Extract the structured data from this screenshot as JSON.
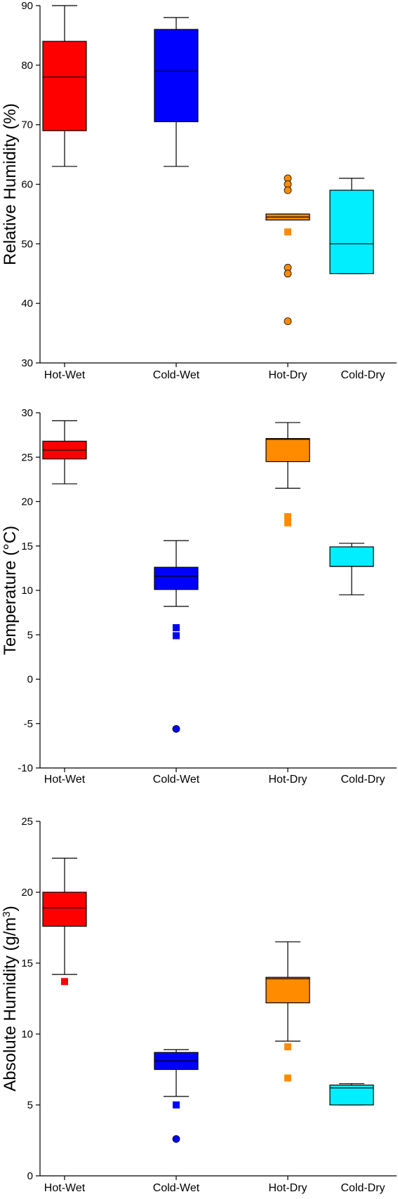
{
  "chart_data": [
    {
      "type": "box",
      "ylabel": "Relative Humidity (%)",
      "ylim": [
        30,
        90
      ],
      "yticks": [
        30,
        40,
        50,
        60,
        70,
        80,
        90
      ],
      "categories": [
        "Hot-Wet",
        "Cold-Wet",
        "Hot-Dry",
        "Cold-Dry"
      ],
      "colors": [
        "#ff0000",
        "#0000ff",
        "#ff8c00",
        "#00eeff"
      ],
      "boxes": [
        {
          "whisker_low": 63,
          "q1": 69,
          "median": 78,
          "q3": 84,
          "whisker_high": 90,
          "outliers": []
        },
        {
          "whisker_low": 63,
          "q1": 70.5,
          "median": 79,
          "q3": 86,
          "whisker_high": 88,
          "outliers": []
        },
        {
          "whisker_low": 54,
          "q1": 54,
          "median": 54.5,
          "q3": 55,
          "whisker_high": 55,
          "outliers": [
            {
              "value": 61,
              "shape": "circle"
            },
            {
              "value": 60,
              "shape": "circle"
            },
            {
              "value": 59,
              "shape": "circle"
            },
            {
              "value": 52,
              "shape": "square"
            },
            {
              "value": 46,
              "shape": "circle"
            },
            {
              "value": 45,
              "shape": "circle"
            },
            {
              "value": 37,
              "shape": "circle"
            }
          ]
        },
        {
          "whisker_low": 45,
          "q1": 45,
          "median": 50,
          "q3": 59,
          "whisker_high": 61,
          "outliers": []
        }
      ]
    },
    {
      "type": "box",
      "ylabel": "Temperature (°C)",
      "ylim": [
        -10,
        30
      ],
      "yticks": [
        -10,
        -5,
        0,
        5,
        10,
        15,
        20,
        25,
        30
      ],
      "categories": [
        "Hot-Wet",
        "Cold-Wet",
        "Hot-Dry",
        "Cold-Dry"
      ],
      "colors": [
        "#ff0000",
        "#0000ff",
        "#ff8c00",
        "#00eeff"
      ],
      "boxes": [
        {
          "whisker_low": 22,
          "q1": 24.8,
          "median": 25.8,
          "q3": 26.8,
          "whisker_high": 29.1,
          "outliers": []
        },
        {
          "whisker_low": 8.2,
          "q1": 10.1,
          "median": 11.6,
          "q3": 12.6,
          "whisker_high": 15.6,
          "outliers": [
            {
              "value": 5.8,
              "shape": "square"
            },
            {
              "value": 4.9,
              "shape": "square"
            },
            {
              "value": -5.6,
              "shape": "circle"
            }
          ]
        },
        {
          "whisker_low": 21.5,
          "q1": 24.5,
          "median": 27,
          "q3": 27.1,
          "whisker_high": 28.9,
          "outliers": [
            {
              "value": 18.3,
              "shape": "square"
            },
            {
              "value": 17.6,
              "shape": "square"
            }
          ]
        },
        {
          "whisker_low": 9.5,
          "q1": 12.7,
          "median": 12.7,
          "q3": 14.9,
          "whisker_high": 15.3,
          "outliers": []
        }
      ]
    },
    {
      "type": "box",
      "ylabel": "Absolute Humidity (g/m",
      "ylabel_sup": "3",
      "ylabel_close": ")",
      "ylim": [
        0,
        25
      ],
      "yticks": [
        0,
        5,
        10,
        15,
        20,
        25
      ],
      "categories": [
        "Hot-Wet",
        "Cold-Wet",
        "Hot-Dry",
        "Cold-Dry"
      ],
      "colors": [
        "#ff0000",
        "#0000ff",
        "#ff8c00",
        "#00eeff"
      ],
      "boxes": [
        {
          "whisker_low": 14.2,
          "q1": 17.6,
          "median": 18.9,
          "q3": 20,
          "whisker_high": 22.4,
          "outliers": [
            {
              "value": 13.7,
              "shape": "square"
            }
          ]
        },
        {
          "whisker_low": 5.6,
          "q1": 7.5,
          "median": 8.1,
          "q3": 8.7,
          "whisker_high": 8.9,
          "outliers": [
            {
              "value": 5,
              "shape": "square"
            },
            {
              "value": 2.6,
              "shape": "circle"
            }
          ]
        },
        {
          "whisker_low": 9.5,
          "q1": 12.2,
          "median": 13.9,
          "q3": 14,
          "whisker_high": 16.5,
          "outliers": [
            {
              "value": 9.1,
              "shape": "square"
            },
            {
              "value": 6.9,
              "shape": "square"
            }
          ]
        },
        {
          "whisker_low": 5,
          "q1": 5,
          "median": 6.2,
          "q3": 6.4,
          "whisker_high": 6.5,
          "outliers": []
        }
      ]
    }
  ]
}
